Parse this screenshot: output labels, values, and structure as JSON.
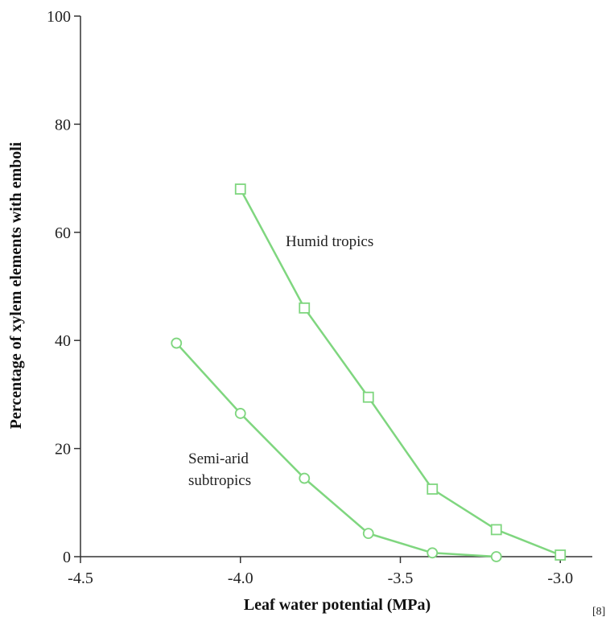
{
  "chart_data": {
    "type": "line",
    "title": "",
    "xlabel": "Leaf water potential (MPa)",
    "ylabel": "Percentage of xylem elements with emboli",
    "xlim": [
      -4.5,
      -2.9
    ],
    "ylim": [
      0,
      100
    ],
    "x_ticks": [
      -4.5,
      -4.0,
      -3.5,
      -3.0
    ],
    "x_tick_labels": [
      "-4.5",
      "-4.0",
      "-3.5",
      "-3.0"
    ],
    "y_ticks": [
      0,
      20,
      40,
      60,
      80,
      100
    ],
    "y_tick_labels": [
      "0",
      "20",
      "40",
      "60",
      "80",
      "100"
    ],
    "grid": false,
    "line_color": "#7fd67f",
    "series": [
      {
        "name": "Humid tropics",
        "marker": "square",
        "x": [
          -4.0,
          -3.8,
          -3.6,
          -3.4,
          -3.2,
          -3.0
        ],
        "y": [
          68,
          46,
          29.5,
          12.5,
          5,
          0.3
        ]
      },
      {
        "name": "Semi-arid subtropics",
        "marker": "circle",
        "x": [
          -4.2,
          -4.0,
          -3.8,
          -3.6,
          -3.4,
          -3.2
        ],
        "y": [
          39.5,
          26.5,
          14.5,
          4.3,
          0.7,
          0
        ]
      }
    ],
    "annotations": {
      "humid": "Humid tropics",
      "semiarid_line1": "Semi-arid",
      "semiarid_line2": "subtropics"
    },
    "reference": "[8]"
  }
}
